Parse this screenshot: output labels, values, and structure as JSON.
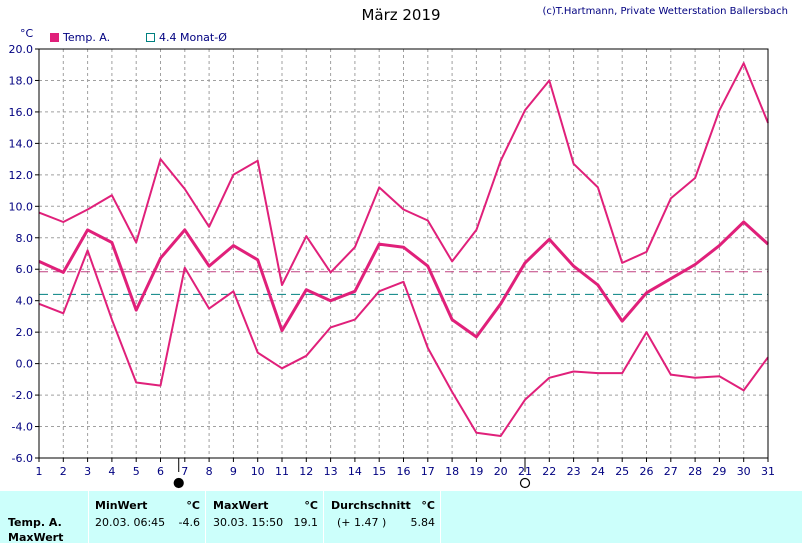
{
  "header": {
    "title": "März 2019",
    "credit": "(c)T.Hartmann, Private Wetterstation Ballersbach",
    "unit": "°C"
  },
  "legend": [
    {
      "label": "Temp. A.",
      "color": "#e0207a",
      "filled": true
    },
    {
      "label": "4.4 Monat-Ø",
      "color": "#008080",
      "filled": false
    }
  ],
  "chart_data": {
    "type": "line",
    "x": [
      1,
      2,
      3,
      4,
      5,
      6,
      7,
      8,
      9,
      10,
      11,
      12,
      13,
      14,
      15,
      16,
      17,
      18,
      19,
      20,
      21,
      22,
      23,
      24,
      25,
      26,
      27,
      28,
      29,
      30,
      31
    ],
    "xlim": [
      1,
      31
    ],
    "ylim": [
      -6,
      20
    ],
    "yticks": [
      "20.0",
      "18.0",
      "16.0",
      "14.0",
      "12.0",
      "10.0",
      "8.0",
      "6.0",
      "4.0",
      "2.0",
      "0.0",
      "-2.0",
      "-4.0",
      "-6.0"
    ],
    "grid": true,
    "series": [
      {
        "role": "max",
        "color": "#e0207a",
        "values": [
          9.6,
          9.0,
          9.8,
          10.7,
          7.7,
          13.0,
          11.1,
          8.7,
          12.0,
          12.9,
          5.0,
          8.1,
          5.8,
          7.4,
          11.2,
          9.8,
          9.1,
          6.5,
          8.5,
          12.9,
          16.1,
          18.0,
          12.7,
          11.2,
          6.4,
          7.1,
          10.5,
          11.8,
          16.1,
          19.1,
          15.3
        ]
      },
      {
        "role": "mean",
        "color": "#e0207a",
        "values": [
          6.5,
          5.8,
          8.5,
          7.7,
          3.4,
          6.7,
          8.5,
          6.2,
          7.5,
          6.6,
          2.1,
          4.7,
          4.0,
          4.6,
          7.6,
          7.4,
          6.2,
          2.8,
          1.7,
          3.8,
          6.4,
          7.9,
          6.2,
          5.0,
          2.7,
          4.5,
          5.4,
          6.3,
          7.5,
          9.0,
          7.6
        ]
      },
      {
        "role": "min",
        "color": "#e0207a",
        "values": [
          3.8,
          3.2,
          7.2,
          2.8,
          -1.2,
          -1.4,
          6.1,
          3.5,
          4.6,
          0.7,
          -0.3,
          0.5,
          2.3,
          2.8,
          4.6,
          5.2,
          1.0,
          -1.8,
          -4.4,
          -4.6,
          -2.3,
          -0.9,
          -0.5,
          -0.6,
          -0.6,
          2.0,
          -0.7,
          -0.9,
          -0.8,
          -1.7,
          0.4
        ]
      }
    ],
    "reference_lines": [
      {
        "value": 5.84,
        "color": "#c04080"
      },
      {
        "value": 4.4,
        "color": "#008080"
      }
    ],
    "moon_markers": [
      {
        "day": 6.75,
        "phase": "new"
      },
      {
        "day": 21.0,
        "phase": "full"
      }
    ]
  },
  "stats": {
    "row_label_1": "Temp. A.",
    "row_label_2": "MaxWert",
    "min_header": "MinWert",
    "min_unit": "°C",
    "min_date": "20.03.  06:45",
    "min_value": "-4.6",
    "max_header": "MaxWert",
    "max_unit": "°C",
    "max_date": "30.03.  15:50",
    "max_value": "19.1",
    "avg_header": "Durchschnitt",
    "avg_unit": "°C",
    "avg_delta": "(+ 1.47 )",
    "avg_value": "5.84"
  }
}
